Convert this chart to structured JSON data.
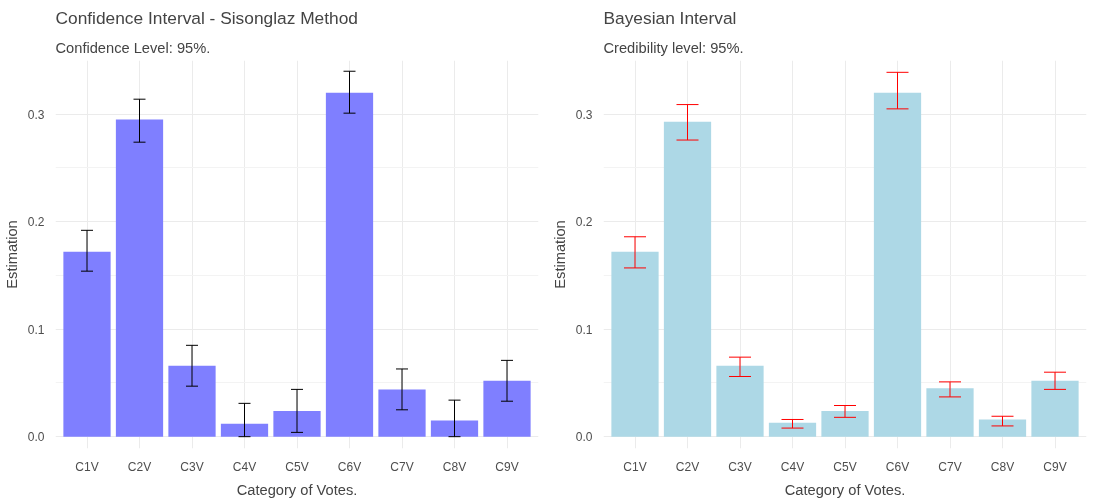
{
  "chart_data": [
    {
      "type": "bar",
      "title": "Confidence Interval - Sisonglaz Method",
      "subtitle": "Confidence Level: 95%.",
      "xlabel": "Category of Votes.",
      "ylabel": "Estimation",
      "categories": [
        "C1V",
        "C2V",
        "C3V",
        "C4V",
        "C5V",
        "C6V",
        "C7V",
        "C8V",
        "C9V"
      ],
      "series": [
        {
          "color": "#7f7fff",
          "values": [
            0.172,
            0.295,
            0.066,
            0.012,
            0.024,
            0.32,
            0.044,
            0.015,
            0.052
          ],
          "errors": [
            [
              0.154,
              0.192
            ],
            [
              0.274,
              0.314
            ],
            [
              0.047,
              0.085
            ],
            [
              0.0,
              0.031
            ],
            [
              0.004,
              0.044
            ],
            [
              0.301,
              0.34
            ],
            [
              0.025,
              0.063
            ],
            [
              0.0,
              0.034
            ],
            [
              0.033,
              0.071
            ]
          ]
        }
      ],
      "ylim": [
        -0.011,
        0.35
      ],
      "yticks": [
        {
          "value": 0,
          "label": "0.0"
        },
        0.1,
        0.2,
        0.3
      ],
      "grid": true
    },
    {
      "type": "bar",
      "title": "Bayesian Interval",
      "subtitle": "Credibility level: 95%.",
      "xlabel": "Category of Votes.",
      "ylabel": "Estimation",
      "categories": [
        "C1V",
        "C2V",
        "C3V",
        "C4V",
        "C5V",
        "C6V",
        "C7V",
        "C8V",
        "C9V"
      ],
      "series": [
        {
          "color": "#add8e6",
          "values": [
            0.172,
            0.293,
            0.066,
            0.013,
            0.024,
            0.32,
            0.045,
            0.016,
            0.052
          ],
          "errors": [
            [
              0.157,
              0.186
            ],
            [
              0.276,
              0.309
            ],
            [
              0.056,
              0.074
            ],
            [
              0.008,
              0.016
            ],
            [
              0.018,
              0.029
            ],
            [
              0.305,
              0.339
            ],
            [
              0.037,
              0.051
            ],
            [
              0.01,
              0.019
            ],
            [
              0.044,
              0.06
            ]
          ]
        }
      ],
      "ylim": [
        -0.011,
        0.35
      ],
      "yticks": [
        {
          "value": 0,
          "label": "0.0"
        },
        0.1,
        0.2,
        0.3
      ],
      "grid": true
    }
  ]
}
